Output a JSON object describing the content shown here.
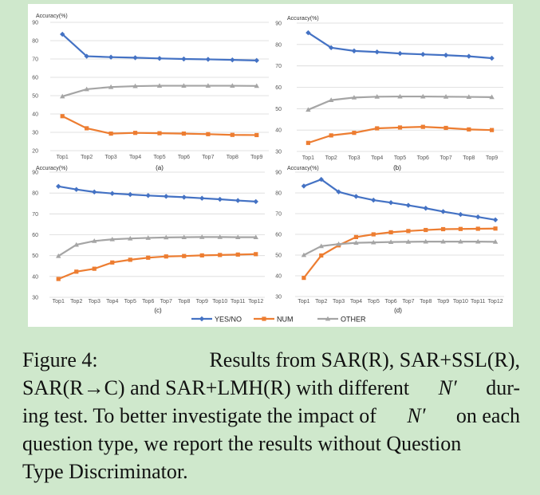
{
  "colors": {
    "yes_no": "#4472C4",
    "num": "#ED7D31",
    "other": "#A5A5A5"
  },
  "legend": [
    "YES/NO",
    "NUM",
    "OTHER"
  ],
  "chart_data": [
    {
      "type": "line",
      "panel_label": "(a)",
      "ylabel": "Accuracy(%)",
      "ylim": [
        20,
        90
      ],
      "yticks": [
        20,
        30,
        40,
        50,
        60,
        70,
        80,
        90
      ],
      "categories": [
        "Top1",
        "Top2",
        "Top3",
        "Top4",
        "Top5",
        "Top6",
        "Top7",
        "Top8",
        "Top9"
      ],
      "series": [
        {
          "name": "YES/NO",
          "values": [
            83.5,
            71.5,
            71.0,
            70.7,
            70.3,
            70.0,
            69.8,
            69.5,
            69.2
          ]
        },
        {
          "name": "NUM",
          "values": [
            38.8,
            32.2,
            29.3,
            29.7,
            29.5,
            29.3,
            29.0,
            28.6,
            28.5
          ]
        },
        {
          "name": "OTHER",
          "values": [
            49.6,
            53.5,
            54.7,
            55.2,
            55.4,
            55.4,
            55.4,
            55.4,
            55.3
          ]
        }
      ]
    },
    {
      "type": "line",
      "panel_label": "(b)",
      "ylabel": "Accuracy(%)",
      "ylim": [
        30,
        90
      ],
      "yticks": [
        30,
        40,
        50,
        60,
        70,
        80,
        90
      ],
      "categories": [
        "Top1",
        "Top2",
        "Top3",
        "Top4",
        "Top5",
        "Top6",
        "Top7",
        "Top8",
        "Top9"
      ],
      "series": [
        {
          "name": "YES/NO",
          "values": [
            85.5,
            78.5,
            77.0,
            76.5,
            75.8,
            75.4,
            75.0,
            74.5,
            73.6
          ]
        },
        {
          "name": "NUM",
          "values": [
            34.0,
            37.5,
            38.7,
            40.8,
            41.2,
            41.5,
            41.0,
            40.3,
            40.0
          ]
        },
        {
          "name": "OTHER",
          "values": [
            49.5,
            54.0,
            55.2,
            55.6,
            55.7,
            55.7,
            55.6,
            55.5,
            55.4
          ]
        }
      ]
    },
    {
      "type": "line",
      "panel_label": "(c)",
      "ylabel": "Accuracy(%)",
      "ylim": [
        30,
        90
      ],
      "yticks": [
        30,
        40,
        50,
        60,
        70,
        80,
        90
      ],
      "categories": [
        "Top1",
        "Top2",
        "Top3",
        "Top4",
        "Top5",
        "Top6",
        "Top7",
        "Top8",
        "Top9",
        "Top10",
        "Top11",
        "Top12"
      ],
      "series": [
        {
          "name": "YES/NO",
          "values": [
            83.2,
            81.7,
            80.5,
            79.8,
            79.3,
            78.8,
            78.4,
            78.0,
            77.5,
            77.0,
            76.4,
            75.9
          ]
        },
        {
          "name": "NUM",
          "values": [
            38.8,
            42.3,
            43.7,
            46.7,
            48.0,
            49.0,
            49.6,
            49.8,
            50.1,
            50.3,
            50.5,
            50.7
          ]
        },
        {
          "name": "OTHER",
          "values": [
            49.8,
            55.2,
            57.0,
            57.8,
            58.2,
            58.5,
            58.7,
            58.8,
            58.9,
            58.9,
            58.8,
            58.8
          ]
        }
      ]
    },
    {
      "type": "line",
      "panel_label": "(d)",
      "ylabel": "Accuracy(%)",
      "ylim": [
        30,
        90
      ],
      "yticks": [
        30,
        40,
        50,
        60,
        70,
        80,
        90
      ],
      "categories": [
        "Top1",
        "Top2",
        "Top3",
        "Top4",
        "Top5",
        "Top6",
        "Top7",
        "Top8",
        "Top9",
        "Top10",
        "Top11",
        "Top12"
      ],
      "series": [
        {
          "name": "YES/NO",
          "values": [
            83.3,
            86.5,
            80.5,
            78.3,
            76.5,
            75.3,
            74.0,
            72.6,
            71.0,
            69.6,
            68.4,
            67.0
          ]
        },
        {
          "name": "NUM",
          "values": [
            39.0,
            49.8,
            54.7,
            58.7,
            60.0,
            61.0,
            61.6,
            62.1,
            62.5,
            62.6,
            62.7,
            62.8
          ]
        },
        {
          "name": "OTHER",
          "values": [
            50.0,
            54.3,
            55.3,
            55.9,
            56.1,
            56.3,
            56.4,
            56.5,
            56.5,
            56.5,
            56.5,
            56.4
          ]
        }
      ]
    }
  ],
  "caption": {
    "prefix": "Figure 4:",
    "line1_rest": "Results from SAR(R), SAR+SSL(R),",
    "line2_pre": "SAR(R→C) and SAR+LMH(R) with different",
    "nprime": "N′",
    "line2_post": "dur-",
    "line3_pre": "ing test. To better investigate the impact of",
    "line3_post": "on each",
    "line4": "question type, we report the results without Question",
    "line5": "Type Discriminator."
  }
}
